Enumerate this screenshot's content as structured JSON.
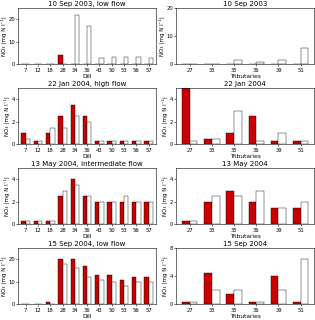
{
  "chart_data": [
    {
      "type": "bar",
      "title": "10 Sep 2003, low flow",
      "xlabel": "Dill",
      "ylabel": "NO₃ (mg N l⁻¹)",
      "categories": [
        "7",
        "12",
        "18",
        "28",
        "34",
        "36",
        "43",
        "50",
        "53",
        "56",
        "57"
      ],
      "series": [
        {
          "color": "#cc0000",
          "values": [
            0.3,
            0.3,
            0.3,
            4.0,
            0.3,
            0.3,
            0.3,
            0.3,
            0.3,
            0.3,
            0.3
          ]
        },
        {
          "color": "#ffffff",
          "values": [
            0.3,
            0.3,
            0.3,
            0.3,
            22.0,
            17.0,
            3.0,
            3.5,
            3.5,
            3.5,
            3.0
          ]
        }
      ],
      "ylim": [
        0,
        25
      ],
      "yticks": [
        0,
        10,
        20
      ]
    },
    {
      "type": "bar",
      "title": "10 Sep 2003",
      "xlabel": "Tributaries",
      "ylabel": "NO₃ (mg N l⁻¹)",
      "categories": [
        "27",
        "33",
        "35",
        "36",
        "39",
        "51"
      ],
      "series": [
        {
          "color": "#cc0000",
          "values": [
            0.3,
            0.3,
            0.3,
            0.3,
            0.3,
            0.3
          ]
        },
        {
          "color": "#ffffff",
          "values": [
            0.3,
            0.3,
            1.5,
            1.0,
            1.5,
            6.0
          ]
        }
      ],
      "ylim": [
        0,
        20
      ],
      "yticks": [
        0,
        10,
        20
      ]
    },
    {
      "type": "bar",
      "title": "22 Jan 2004, high flow",
      "xlabel": "Dill",
      "ylabel": "NO₃ (mg N l⁻¹)",
      "categories": [
        "7",
        "12",
        "18",
        "28",
        "34",
        "36",
        "43",
        "50",
        "53",
        "56",
        "57"
      ],
      "series": [
        {
          "color": "#cc0000",
          "values": [
            1.0,
            0.3,
            1.0,
            2.5,
            3.5,
            2.5,
            0.3,
            0.3,
            0.3,
            0.3,
            0.3
          ]
        },
        {
          "color": "#ffffff",
          "values": [
            0.5,
            0.3,
            1.5,
            1.5,
            2.5,
            2.0,
            0.3,
            0.3,
            0.3,
            0.3,
            0.3
          ]
        }
      ],
      "ylim": [
        0,
        5
      ],
      "yticks": [
        0,
        2,
        4
      ]
    },
    {
      "type": "bar",
      "title": "22 Jan 2004",
      "xlabel": "Tributaries",
      "ylabel": "NO₃ (mg N l⁻¹)",
      "categories": [
        "27",
        "33",
        "35",
        "36",
        "39",
        "51"
      ],
      "series": [
        {
          "color": "#cc0000",
          "values": [
            5.0,
            0.5,
            1.0,
            2.5,
            0.3,
            0.3
          ]
        },
        {
          "color": "#ffffff",
          "values": [
            0.3,
            0.5,
            3.0,
            0.3,
            1.0,
            0.3
          ]
        }
      ],
      "ylim": [
        0,
        5
      ],
      "yticks": [
        0,
        2,
        4
      ]
    },
    {
      "type": "bar",
      "title": "13 May 2004, intermediate flow",
      "xlabel": "Dill",
      "ylabel": "NO₃ (mg N l⁻¹)",
      "categories": [
        "7",
        "12",
        "18",
        "28",
        "34",
        "36",
        "43",
        "50",
        "53",
        "56",
        "57"
      ],
      "series": [
        {
          "color": "#cc0000",
          "values": [
            0.3,
            0.3,
            0.3,
            2.5,
            4.0,
            2.5,
            2.0,
            2.0,
            2.0,
            2.0,
            2.0
          ]
        },
        {
          "color": "#ffffff",
          "values": [
            0.3,
            0.3,
            0.3,
            3.0,
            3.5,
            2.5,
            2.0,
            2.0,
            2.5,
            2.0,
            2.0
          ]
        }
      ],
      "ylim": [
        0,
        5
      ],
      "yticks": [
        0,
        2,
        4
      ]
    },
    {
      "type": "bar",
      "title": "13 May 2004",
      "xlabel": "Tributaries",
      "ylabel": "NO₃ (mg N l⁻¹)",
      "categories": [
        "27",
        "33",
        "35",
        "36",
        "39",
        "51"
      ],
      "series": [
        {
          "color": "#cc0000",
          "values": [
            0.3,
            2.0,
            3.0,
            2.0,
            1.5,
            1.5
          ]
        },
        {
          "color": "#ffffff",
          "values": [
            0.3,
            2.5,
            2.5,
            3.0,
            1.5,
            2.0
          ]
        }
      ],
      "ylim": [
        0,
        5
      ],
      "yticks": [
        0,
        2,
        4
      ]
    },
    {
      "type": "bar",
      "title": "15 Sep 2004, low flow",
      "xlabel": "Dill",
      "ylabel": "NO₃ (mg N l⁻¹)",
      "categories": [
        "7",
        "12",
        "18",
        "28",
        "34",
        "36",
        "43",
        "50",
        "53",
        "56",
        "57"
      ],
      "series": [
        {
          "color": "#cc0000",
          "values": [
            0.3,
            0.3,
            1.0,
            20.0,
            20.0,
            17.0,
            13.0,
            13.0,
            11.0,
            12.0,
            12.0
          ]
        },
        {
          "color": "#ffffff",
          "values": [
            0.3,
            0.3,
            0.3,
            18.0,
            16.0,
            12.0,
            11.0,
            10.0,
            8.0,
            10.0,
            10.0
          ]
        }
      ],
      "ylim": [
        0,
        25
      ],
      "yticks": [
        0,
        10,
        20
      ]
    },
    {
      "type": "bar",
      "title": "15 Sep 2004",
      "xlabel": "Tributaries",
      "ylabel": "NO₃ (mg N l⁻¹)",
      "categories": [
        "27",
        "33",
        "35",
        "36",
        "39",
        "51"
      ],
      "series": [
        {
          "color": "#cc0000",
          "values": [
            0.3,
            4.5,
            1.5,
            0.3,
            4.0,
            0.3
          ]
        },
        {
          "color": "#ffffff",
          "values": [
            0.3,
            2.0,
            2.0,
            0.3,
            2.0,
            6.5
          ]
        }
      ],
      "ylim": [
        0,
        8
      ],
      "yticks": [
        0,
        4,
        8
      ]
    }
  ]
}
